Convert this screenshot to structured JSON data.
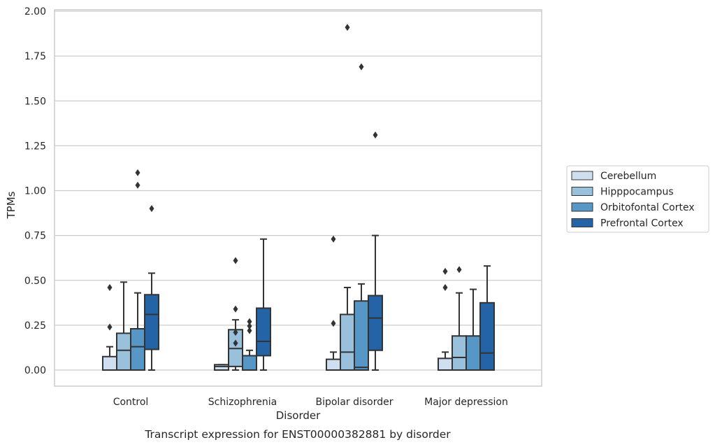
{
  "chart_data": {
    "type": "box",
    "xlabel": "Disorder",
    "ylabel": "TPMs",
    "caption": "Transcript expression for ENST00000382881 by disorder",
    "categories": [
      "Control",
      "Schizophrenia",
      "Bipolar disorder",
      "Major depression"
    ],
    "ylim": [
      -0.09,
      2.0
    ],
    "yticks": [
      "0.00",
      "0.25",
      "0.50",
      "0.75",
      "1.00",
      "1.25",
      "1.50",
      "1.75",
      "2.00"
    ],
    "grid": "horizontal",
    "legend_position": "right",
    "series": [
      {
        "name": "Cerebellum",
        "color": "#d0dff0",
        "boxes": [
          {
            "whisker_low": 0.0,
            "q1": 0.0,
            "median": 0.0,
            "q3": 0.075,
            "whisker_high": 0.13,
            "outliers": [
              0.24,
              0.46
            ]
          },
          {
            "whisker_low": 0.0,
            "q1": 0.0,
            "median": 0.02,
            "q3": 0.03,
            "whisker_high": 0.03,
            "outliers": []
          },
          {
            "whisker_low": 0.0,
            "q1": 0.0,
            "median": 0.0,
            "q3": 0.06,
            "whisker_high": 0.1,
            "outliers": [
              0.26,
              0.73
            ]
          },
          {
            "whisker_low": 0.0,
            "q1": 0.0,
            "median": 0.0,
            "q3": 0.065,
            "whisker_high": 0.1,
            "outliers": [
              0.46,
              0.55
            ]
          }
        ]
      },
      {
        "name": "Hipppocampus",
        "color": "#9ac1dc",
        "boxes": [
          {
            "whisker_low": 0.0,
            "q1": 0.0,
            "median": 0.11,
            "q3": 0.205,
            "whisker_high": 0.49,
            "outliers": []
          },
          {
            "whisker_low": 0.0,
            "q1": 0.02,
            "median": 0.12,
            "q3": 0.225,
            "whisker_high": 0.28,
            "outliers": [
              0.15,
              0.21,
              0.34,
              0.61
            ]
          },
          {
            "whisker_low": 0.0,
            "q1": 0.0,
            "median": 0.1,
            "q3": 0.31,
            "whisker_high": 0.46,
            "outliers": [
              1.91
            ]
          },
          {
            "whisker_low": 0.0,
            "q1": 0.0,
            "median": 0.07,
            "q3": 0.19,
            "whisker_high": 0.43,
            "outliers": [
              0.56
            ]
          }
        ]
      },
      {
        "name": "Orbitofontal Cortex",
        "color": "#5797c6",
        "boxes": [
          {
            "whisker_low": 0.0,
            "q1": 0.0,
            "median": 0.13,
            "q3": 0.23,
            "whisker_high": 0.43,
            "outliers": [
              1.03,
              1.1
            ]
          },
          {
            "whisker_low": 0.0,
            "q1": 0.0,
            "median": 0.0,
            "q3": 0.08,
            "whisker_high": 0.11,
            "outliers": [
              0.22,
              0.245,
              0.27
            ]
          },
          {
            "whisker_low": 0.0,
            "q1": 0.0,
            "median": 0.015,
            "q3": 0.385,
            "whisker_high": 0.48,
            "outliers": [
              1.69
            ]
          },
          {
            "whisker_low": 0.0,
            "q1": 0.0,
            "median": 0.0,
            "q3": 0.19,
            "whisker_high": 0.45,
            "outliers": []
          }
        ]
      },
      {
        "name": "Prefrontal Cortex",
        "color": "#2463a6",
        "boxes": [
          {
            "whisker_low": 0.0,
            "q1": 0.115,
            "median": 0.31,
            "q3": 0.42,
            "whisker_high": 0.54,
            "outliers": [
              0.9
            ]
          },
          {
            "whisker_low": 0.0,
            "q1": 0.08,
            "median": 0.16,
            "q3": 0.345,
            "whisker_high": 0.73,
            "outliers": []
          },
          {
            "whisker_low": 0.0,
            "q1": 0.11,
            "median": 0.29,
            "q3": 0.415,
            "whisker_high": 0.75,
            "outliers": [
              1.31
            ]
          },
          {
            "whisker_low": 0.0,
            "q1": 0.0,
            "median": 0.095,
            "q3": 0.375,
            "whisker_high": 0.58,
            "outliers": []
          }
        ]
      }
    ]
  }
}
